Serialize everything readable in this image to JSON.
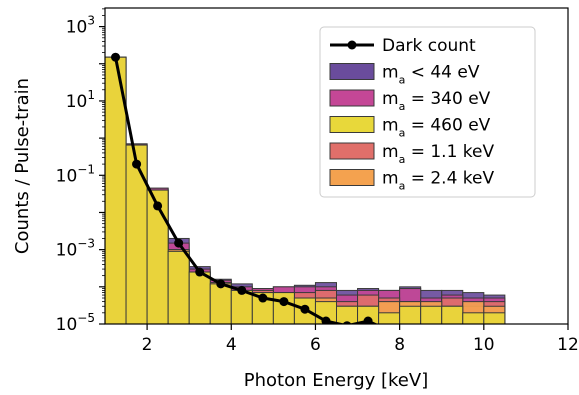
{
  "chart_data": {
    "type": "bar",
    "title": "",
    "xlabel": "Photon Energy [keV]",
    "ylabel": "Counts / Pulse-train",
    "xlim": [
      1,
      12
    ],
    "ylim_log10": [
      -5,
      3.5
    ],
    "yscale": "log",
    "grid": false,
    "legend_position": "top-right",
    "xticks": [
      2,
      4,
      6,
      8,
      10,
      12
    ],
    "yticks": [
      {
        "exp": 3,
        "base": "10",
        "sup": "3"
      },
      {
        "exp": 1,
        "base": "10",
        "sup": "1"
      },
      {
        "exp": -1,
        "base": "10",
        "sup": "−1"
      },
      {
        "exp": -3,
        "base": "10",
        "sup": "−3"
      },
      {
        "exp": -5,
        "base": "10",
        "sup": "−5"
      }
    ],
    "bin_edges": [
      1.0,
      1.5,
      2.0,
      2.5,
      3.0,
      3.5,
      4.0,
      4.5,
      5.0,
      5.5,
      6.0,
      6.5,
      7.0,
      7.5,
      8.0,
      8.5,
      9.0,
      9.5,
      10.0,
      10.5
    ],
    "series": [
      {
        "key": "s1",
        "color": "#6a4c9c",
        "values": [
          150,
          0.7,
          0.045,
          0.002,
          0.00035,
          0.00016,
          0.00012,
          9e-05,
          0.0001,
          0.00011,
          0.00013,
          8e-05,
          9e-05,
          8e-05,
          0.0001,
          8e-05,
          8e-05,
          7e-05,
          6e-05
        ]
      },
      {
        "key": "s2",
        "color": "#c44796",
        "values": [
          150,
          0.7,
          0.045,
          0.0015,
          0.0003,
          0.00015,
          0.0001,
          9e-05,
          0.0001,
          0.0001,
          0.0001,
          6e-05,
          8e-05,
          8e-05,
          9e-05,
          5e-05,
          6e-05,
          5e-05,
          5e-05
        ]
      },
      {
        "key": "s3",
        "color": "#e8d83a",
        "values": [
          150,
          0.65,
          0.04,
          0.0009,
          0.00025,
          0.00012,
          8e-05,
          7e-05,
          7e-05,
          5e-05,
          4e-05,
          3e-05,
          3e-05,
          2e-05,
          3e-05,
          3e-05,
          3e-05,
          2e-05,
          2e-05
        ]
      },
      {
        "key": "s4",
        "color": "#e06f6a",
        "values": [
          150,
          0.65,
          0.04,
          0.001,
          0.00025,
          0.00013,
          8e-05,
          8e-05,
          7e-05,
          7e-05,
          8e-05,
          4e-05,
          6e-05,
          5e-05,
          4e-05,
          3e-05,
          5e-05,
          3e-05,
          4e-05
        ]
      },
      {
        "key": "s5",
        "color": "#f4a24f",
        "values": [
          150,
          0.65,
          0.04,
          0.001,
          0.00025,
          0.00013,
          8e-05,
          7e-05,
          5e-05,
          5e-05,
          5e-05,
          3e-05,
          3e-05,
          4e-05,
          4e-05,
          4e-05,
          3e-05,
          4e-05,
          3e-05
        ]
      }
    ],
    "draw_order": [
      "s1",
      "s2",
      "s4",
      "s5",
      "s3"
    ],
    "dark_count": {
      "label": "Dark count",
      "color": "#000000",
      "x": [
        1.25,
        1.75,
        2.25,
        2.75,
        3.25,
        3.75,
        4.25,
        4.75,
        5.25,
        5.75,
        6.25,
        6.75,
        7.25
      ],
      "y": [
        150,
        0.2,
        0.015,
        0.0015,
        0.00025,
        0.00012,
        8e-05,
        5e-05,
        4e-05,
        2.5e-05,
        1.2e-05,
        9e-06,
        1.2e-05
      ],
      "clip_line_to_x": 7.5
    },
    "legend": [
      {
        "key": "dark",
        "type": "line",
        "text": "Dark count"
      },
      {
        "key": "s1",
        "type": "patch",
        "pre": "m",
        "sub": "a",
        "post": " < 44 eV"
      },
      {
        "key": "s2",
        "type": "patch",
        "pre": "m",
        "sub": "a",
        "post": " = 340 eV"
      },
      {
        "key": "s3",
        "type": "patch",
        "pre": "m",
        "sub": "a",
        "post": " = 460 eV"
      },
      {
        "key": "s4",
        "type": "patch",
        "pre": "m",
        "sub": "a",
        "post": " = 1.1 keV"
      },
      {
        "key": "s5",
        "type": "patch",
        "pre": "m",
        "sub": "a",
        "post": " = 2.4 keV"
      }
    ]
  }
}
